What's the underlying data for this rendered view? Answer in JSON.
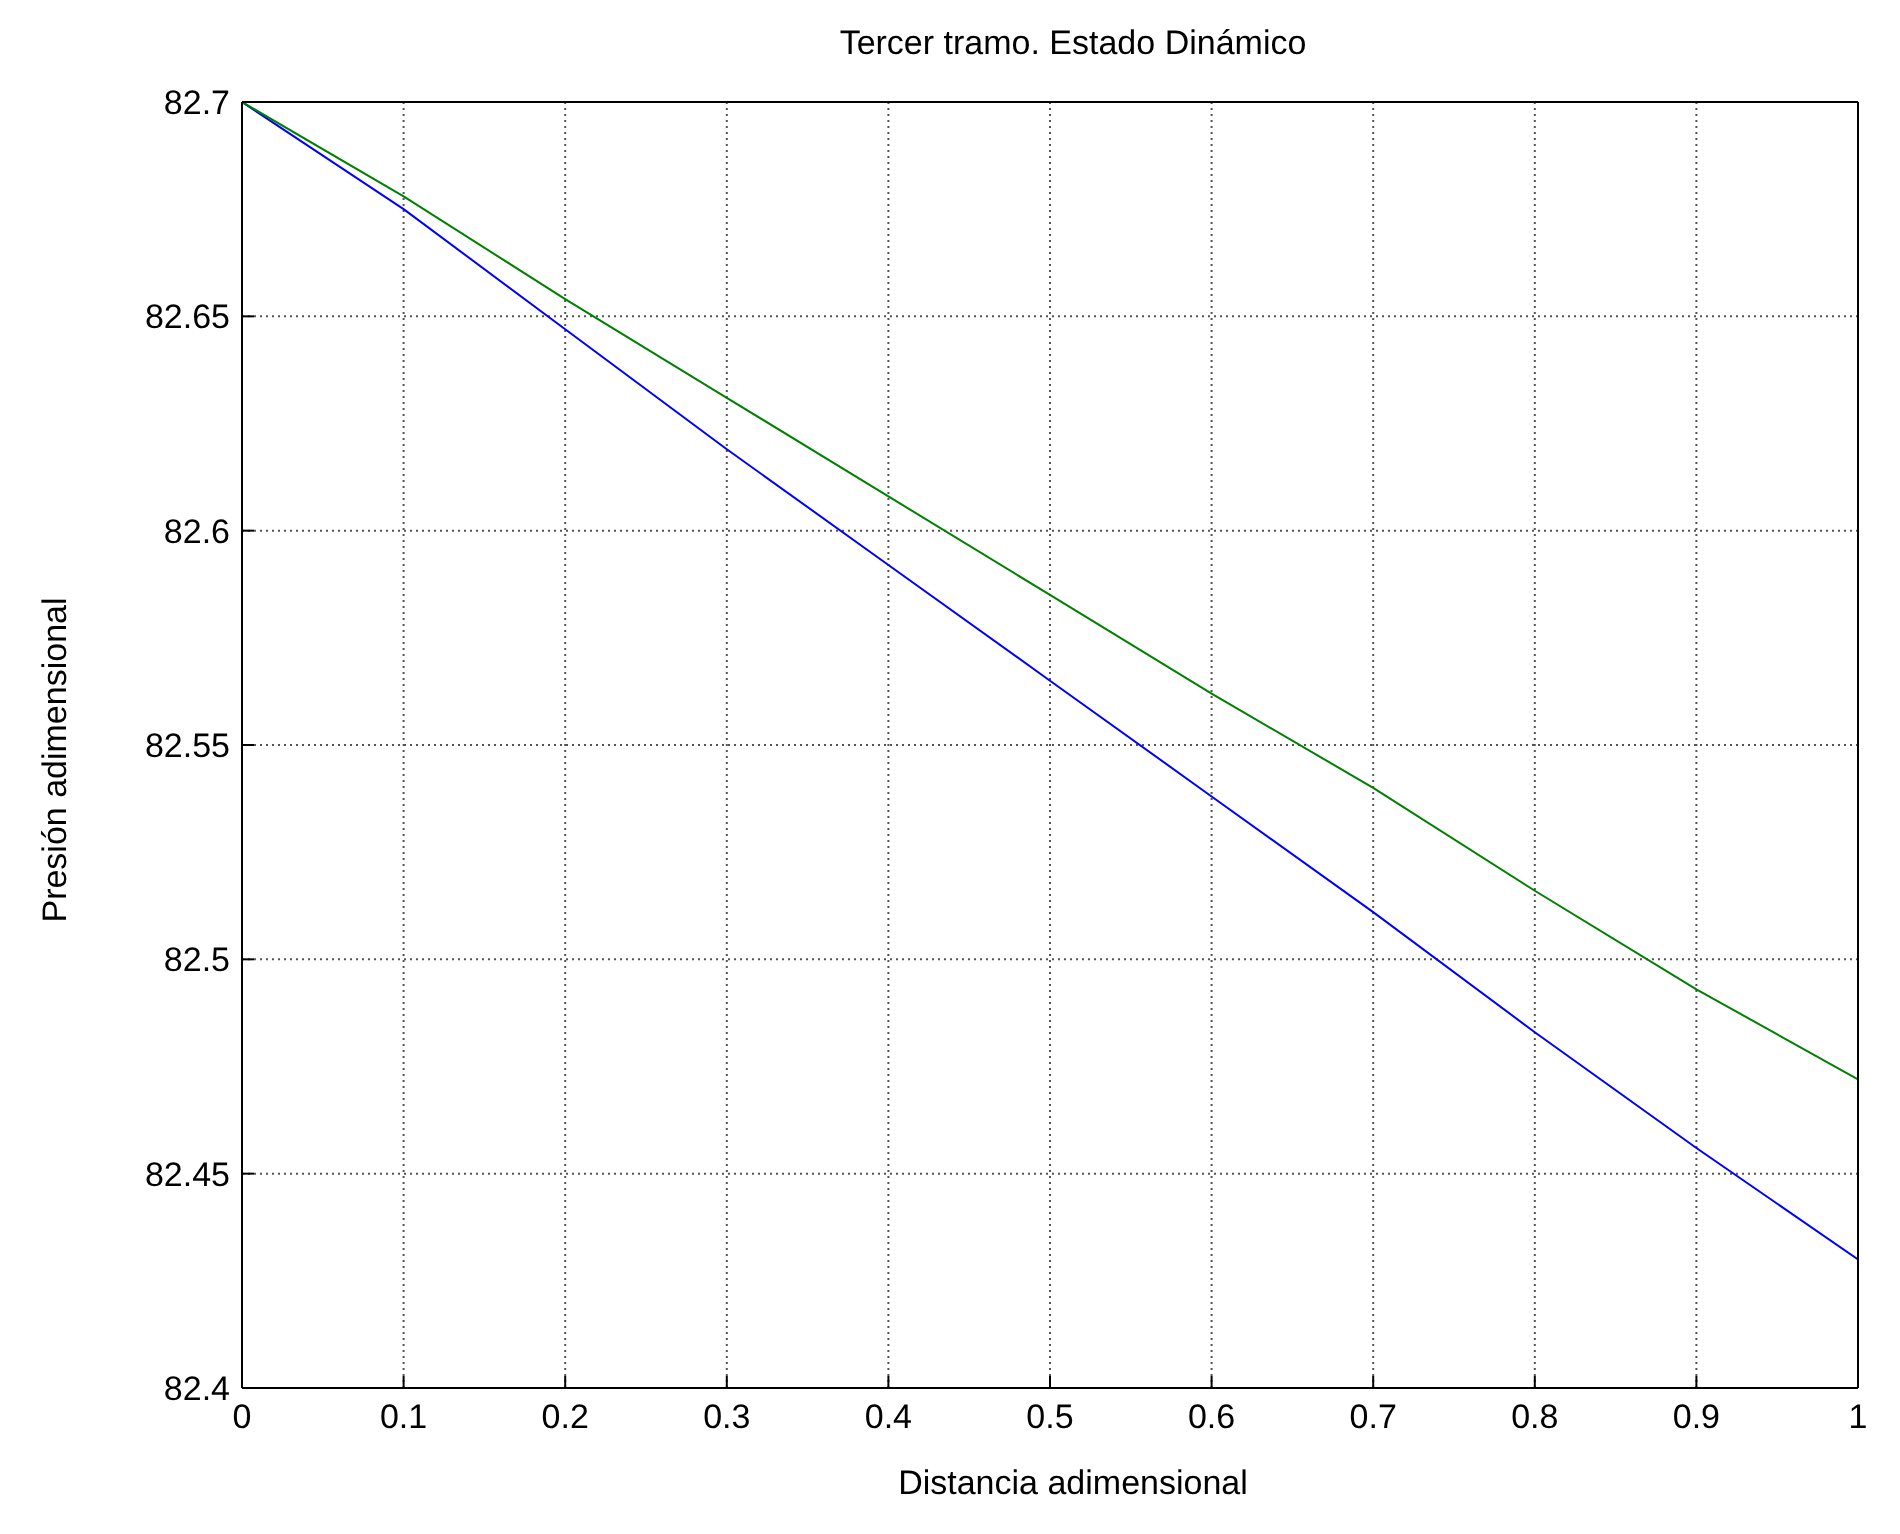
{
  "chart_data": {
    "type": "line",
    "title": "Tercer tramo. Estado Dinámico",
    "xlabel": "Distancia adimensional",
    "ylabel": "Presión adimensional",
    "x": [
      0,
      0.1,
      0.2,
      0.3,
      0.4,
      0.5,
      0.6,
      0.7,
      0.8,
      0.9,
      1
    ],
    "series": [
      {
        "color": "#0000ff",
        "values": [
          82.7,
          82.675,
          82.647,
          82.619,
          82.592,
          82.565,
          82.538,
          82.511,
          82.483,
          82.456,
          82.43
        ]
      },
      {
        "color": "#008000",
        "values": [
          82.7,
          82.678,
          82.654,
          82.631,
          82.608,
          82.585,
          82.562,
          82.54,
          82.516,
          82.493,
          82.472
        ]
      }
    ],
    "xlim": [
      0,
      1
    ],
    "xticks": [
      0,
      0.1,
      0.2,
      0.3,
      0.4,
      0.5,
      0.6,
      0.7,
      0.8,
      0.9,
      1
    ],
    "ylim": [
      82.4,
      82.7
    ],
    "yticks": [
      82.4,
      82.45,
      82.5,
      82.55,
      82.6,
      82.65,
      82.7
    ],
    "grid": true,
    "marker": "none",
    "line_style": "solid"
  }
}
